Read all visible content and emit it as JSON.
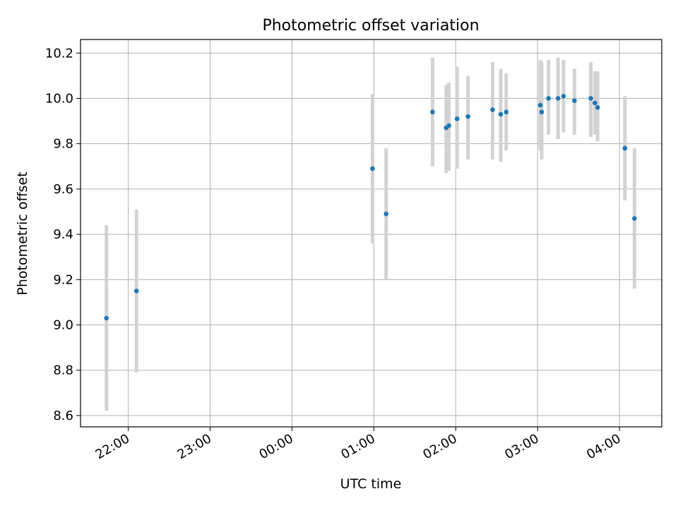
{
  "chart_data": {
    "type": "scatter",
    "title": "Photometric offset variation",
    "xlabel": "UTC time",
    "ylabel": "Photometric offset",
    "x_is_time": true,
    "xlim": [
      "21:25",
      "04:31"
    ],
    "ylim": [
      8.55,
      10.26
    ],
    "xticks": [
      "22:00",
      "23:00",
      "00:00",
      "01:00",
      "02:00",
      "03:00",
      "04:00"
    ],
    "yticks": [
      8.6,
      8.8,
      9.0,
      9.2,
      9.4,
      9.6,
      9.8,
      10.0,
      10.2
    ],
    "grid": true,
    "point_color": "#1f77b4",
    "errorbar_color": "#d3d3d3",
    "series": [
      {
        "points": [
          {
            "t": "21:44",
            "y": 9.03,
            "ylo": 8.62,
            "yhi": 9.44
          },
          {
            "t": "22:06",
            "y": 9.15,
            "ylo": 8.79,
            "yhi": 9.51
          },
          {
            "t": "00:59",
            "y": 9.69,
            "ylo": 9.36,
            "yhi": 10.02
          },
          {
            "t": "01:09",
            "y": 9.49,
            "ylo": 9.2,
            "yhi": 9.78
          },
          {
            "t": "01:43",
            "y": 9.94,
            "ylo": 9.7,
            "yhi": 10.18
          },
          {
            "t": "01:53",
            "y": 9.87,
            "ylo": 9.67,
            "yhi": 10.06
          },
          {
            "t": "01:55",
            "y": 9.88,
            "ylo": 9.68,
            "yhi": 10.07
          },
          {
            "t": "02:01",
            "y": 9.91,
            "ylo": 9.69,
            "yhi": 10.14
          },
          {
            "t": "02:09",
            "y": 9.92,
            "ylo": 9.73,
            "yhi": 10.1
          },
          {
            "t": "02:27",
            "y": 9.95,
            "ylo": 9.73,
            "yhi": 10.16
          },
          {
            "t": "02:33",
            "y": 9.93,
            "ylo": 9.72,
            "yhi": 10.13
          },
          {
            "t": "02:37",
            "y": 9.94,
            "ylo": 9.77,
            "yhi": 10.11
          },
          {
            "t": "03:02",
            "y": 9.97,
            "ylo": 9.77,
            "yhi": 10.17
          },
          {
            "t": "03:03",
            "y": 9.94,
            "ylo": 9.73,
            "yhi": 10.16
          },
          {
            "t": "03:08",
            "y": 10.0,
            "ylo": 9.84,
            "yhi": 10.17
          },
          {
            "t": "03:15",
            "y": 10.0,
            "ylo": 9.82,
            "yhi": 10.18
          },
          {
            "t": "03:19",
            "y": 10.01,
            "ylo": 9.85,
            "yhi": 10.17
          },
          {
            "t": "03:27",
            "y": 9.99,
            "ylo": 9.84,
            "yhi": 10.13
          },
          {
            "t": "03:39",
            "y": 10.0,
            "ylo": 9.83,
            "yhi": 10.16
          },
          {
            "t": "03:42",
            "y": 9.98,
            "ylo": 9.84,
            "yhi": 10.12
          },
          {
            "t": "03:44",
            "y": 9.96,
            "ylo": 9.81,
            "yhi": 10.12
          },
          {
            "t": "04:04",
            "y": 9.78,
            "ylo": 9.55,
            "yhi": 10.01
          },
          {
            "t": "04:11",
            "y": 9.47,
            "ylo": 9.16,
            "yhi": 9.78
          }
        ]
      }
    ]
  }
}
